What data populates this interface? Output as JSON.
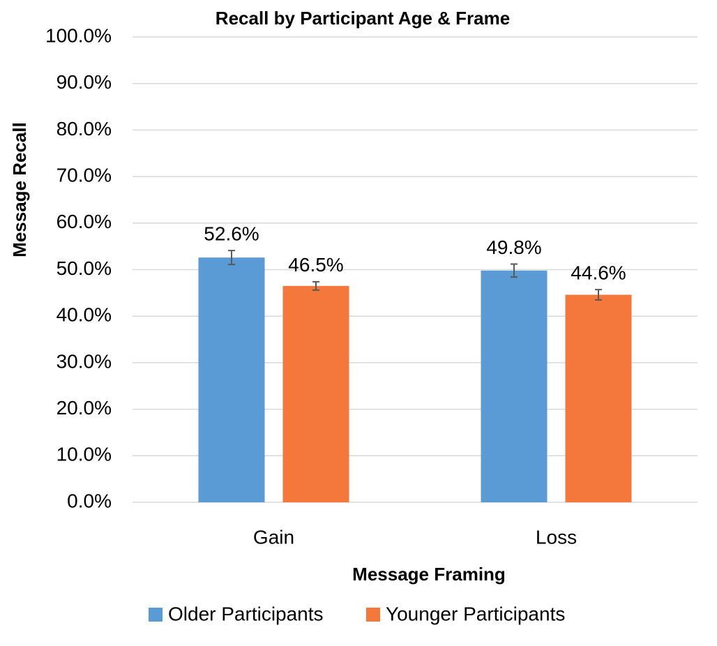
{
  "chart_data": {
    "type": "bar",
    "title": "Recall by Participant Age & Frame",
    "xlabel": "Message Framing",
    "ylabel": "Message Recall",
    "categories": [
      "Gain",
      "Loss"
    ],
    "series": [
      {
        "name": "Older Participants",
        "color": "#5b9bd5",
        "values": [
          52.6,
          49.8
        ],
        "value_labels": [
          "52.6%",
          "49.8%"
        ],
        "errors": [
          1.5,
          1.4
        ]
      },
      {
        "name": "Younger Participants",
        "color": "#f4773b",
        "values": [
          46.5,
          44.6
        ],
        "value_labels": [
          "46.5%",
          "44.6%"
        ],
        "errors": [
          0.9,
          1.1
        ]
      }
    ],
    "ylim": [
      0,
      100
    ],
    "yticks": [
      {
        "value": 0,
        "label": "0.0%"
      },
      {
        "value": 10,
        "label": "10.0%"
      },
      {
        "value": 20,
        "label": "20.0%"
      },
      {
        "value": 30,
        "label": "30.0%"
      },
      {
        "value": 40,
        "label": "40.0%"
      },
      {
        "value": 50,
        "label": "50.0%"
      },
      {
        "value": 60,
        "label": "60.0%"
      },
      {
        "value": 70,
        "label": "70.0%"
      },
      {
        "value": 80,
        "label": "80.0%"
      },
      {
        "value": 90,
        "label": "90.0%"
      },
      {
        "value": 100,
        "label": "100.0%"
      }
    ],
    "grid": true,
    "legend": "bottom"
  }
}
